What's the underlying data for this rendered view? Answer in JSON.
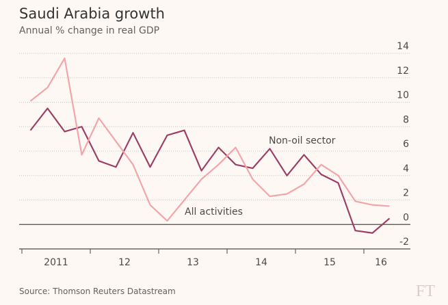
{
  "chart_data": {
    "type": "line",
    "title": "Saudi Arabia growth",
    "subtitle": "Annual % change in real GDP",
    "source": "Source: Thomson Reuters Datastream",
    "logo": "FT",
    "x": [
      2011.125,
      2011.375,
      2011.625,
      2011.875,
      2012.125,
      2012.375,
      2012.625,
      2012.875,
      2013.125,
      2013.375,
      2013.625,
      2013.875,
      2014.125,
      2014.375,
      2014.625,
      2014.875,
      2015.125,
      2015.375,
      2015.625,
      2015.875,
      2016.125,
      2016.375
    ],
    "series": [
      {
        "name": "Non-oil sector",
        "color": "#9b3f66",
        "values": [
          7.7,
          9.5,
          7.6,
          8.0,
          5.2,
          4.7,
          7.5,
          4.7,
          7.3,
          7.7,
          4.4,
          6.3,
          4.9,
          4.6,
          6.2,
          4.0,
          5.7,
          4.1,
          3.4,
          -0.5,
          -0.7,
          0.5
        ]
      },
      {
        "name": "All activities",
        "color": "#f2a5aa",
        "values": [
          10.1,
          11.2,
          13.6,
          5.7,
          8.7,
          6.8,
          4.9,
          1.6,
          0.3,
          2.0,
          3.7,
          4.9,
          6.3,
          3.7,
          2.3,
          2.5,
          3.3,
          4.9,
          4.0,
          1.9,
          1.6,
          1.5
        ]
      }
    ],
    "xlim": [
      2010.96,
      2016.68
    ],
    "xticks": [
      2011,
      2012,
      2013,
      2014,
      2015,
      2016
    ],
    "xtick_labels": [
      {
        "value": 2011.5,
        "label": "2011"
      },
      {
        "value": 2012.5,
        "label": "12"
      },
      {
        "value": 2013.5,
        "label": "13"
      },
      {
        "value": 2014.5,
        "label": "14"
      },
      {
        "value": 2015.5,
        "label": "15"
      },
      {
        "value": 2016.25,
        "label": "16"
      }
    ],
    "ylim": [
      -2,
      14
    ],
    "yticks": [
      -2,
      0,
      2,
      4,
      6,
      8,
      10,
      12,
      14
    ],
    "grid": true
  }
}
